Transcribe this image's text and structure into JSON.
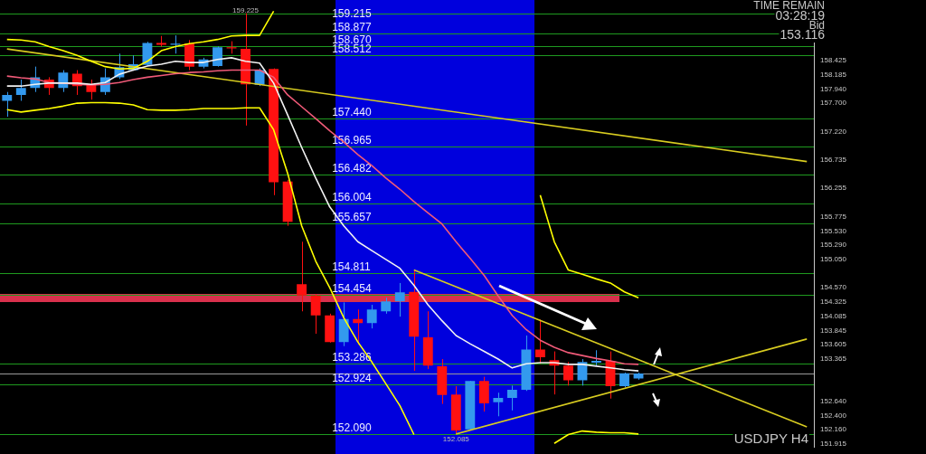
{
  "chart_data": {
    "type": "candlestick",
    "categories": [
      null,
      null,
      null,
      null,
      null,
      null,
      null,
      null,
      null,
      null,
      null,
      null,
      null,
      null,
      null,
      null,
      null,
      null,
      null,
      null,
      null,
      null,
      null,
      null,
      null,
      null,
      null,
      null,
      null,
      null,
      null,
      null,
      null,
      null,
      null,
      null,
      null,
      null,
      null,
      null,
      null,
      null,
      null,
      null,
      null,
      null,
      null,
      null,
      null,
      null,
      null,
      null,
      null,
      null,
      null,
      null,
      null,
      null
    ],
    "ohlc": [
      [
        157.74,
        157.89,
        157.47,
        157.84
      ],
      [
        157.84,
        158.1,
        157.74,
        157.96
      ],
      [
        157.96,
        158.32,
        157.89,
        158.14
      ],
      [
        158.1,
        158.14,
        157.84,
        157.96
      ],
      [
        157.96,
        158.26,
        157.89,
        158.22
      ],
      [
        158.2,
        158.26,
        157.84,
        157.99
      ],
      [
        158.02,
        158.1,
        157.76,
        157.89
      ],
      [
        157.89,
        158.29,
        157.84,
        158.14
      ],
      [
        158.14,
        158.54,
        158.11,
        158.31
      ],
      [
        158.26,
        158.51,
        158.25,
        158.36
      ],
      [
        158.35,
        158.74,
        158.33,
        158.72
      ],
      [
        158.72,
        158.84,
        158.66,
        158.69
      ],
      [
        158.69,
        158.85,
        158.54,
        158.71
      ],
      [
        158.71,
        158.77,
        158.26,
        158.32
      ],
      [
        158.32,
        158.47,
        158.29,
        158.44
      ],
      [
        158.33,
        158.66,
        158.32,
        158.65
      ],
      [
        158.65,
        158.75,
        158.54,
        158.63
      ],
      [
        158.62,
        159.225,
        157.32,
        158.02
      ],
      [
        158.01,
        158.29,
        157.99,
        158.26
      ],
      [
        158.28,
        158.29,
        156.14,
        156.36
      ],
      [
        156.37,
        156.4,
        155.62,
        155.69
      ],
      [
        154.63,
        155.35,
        154.17,
        154.44
      ],
      [
        154.44,
        154.46,
        153.79,
        154.1
      ],
      [
        154.1,
        154.13,
        153.64,
        153.65
      ],
      [
        153.65,
        154.32,
        153.58,
        154.04
      ],
      [
        154.04,
        154.2,
        153.61,
        153.97
      ],
      [
        153.97,
        154.28,
        153.88,
        154.2
      ],
      [
        154.17,
        154.4,
        154.13,
        154.34
      ],
      [
        154.34,
        154.65,
        154.08,
        154.49
      ],
      [
        154.5,
        154.87,
        153.16,
        153.74
      ],
      [
        153.73,
        154.17,
        153.19,
        153.25
      ],
      [
        153.24,
        153.36,
        152.6,
        152.75
      ],
      [
        152.76,
        152.9,
        152.085,
        152.15
      ],
      [
        152.17,
        152.99,
        152.15,
        152.99
      ],
      [
        152.99,
        153.06,
        152.47,
        152.61
      ],
      [
        152.63,
        152.79,
        152.39,
        152.7
      ],
      [
        152.7,
        152.91,
        152.49,
        152.84
      ],
      [
        152.84,
        153.76,
        152.82,
        153.52
      ],
      [
        153.52,
        154.03,
        153.28,
        153.39
      ],
      [
        153.34,
        153.49,
        152.76,
        153.25
      ],
      [
        153.25,
        153.31,
        152.91,
        153.0
      ],
      [
        153.0,
        153.36,
        152.91,
        153.31
      ],
      [
        153.3,
        153.51,
        153.24,
        153.33
      ],
      [
        153.33,
        153.49,
        152.69,
        152.9
      ],
      [
        152.9,
        153.13,
        152.88,
        153.12
      ],
      [
        153.03,
        153.13,
        153.01,
        153.116
      ],
      null,
      null,
      null,
      null,
      null,
      null,
      null,
      null,
      null,
      null,
      null,
      null
    ],
    "colors": [
      "#3399ee",
      "#3399ee",
      "#3399ee",
      "#ff1111",
      "#3399ee",
      "#ff1111",
      "#ff1111",
      "#3399ee",
      "#3399ee",
      "#3399ee",
      "#3399ee",
      "#ff1111",
      "#3399ee",
      "#ff1111",
      "#3399ee",
      "#3399ee",
      "#ff1111",
      "#ff1111",
      "#3399ee",
      "#ff1111",
      "#ff1111",
      "#ff1111",
      "#ff1111",
      "#ff1111",
      "#3399ee",
      "#ff1111",
      "#3399ee",
      "#3399ee",
      "#3399ee",
      "#ff1111",
      "#ff1111",
      "#ff1111",
      "#ff1111",
      "#3399ee",
      "#ff1111",
      "#3399ee",
      "#3399ee",
      "#3399ee",
      "#ff1111",
      "#ff1111",
      "#ff1111",
      "#3399ee",
      "#3399ee",
      "#ff1111",
      "#3399ee",
      "#3399ee",
      null,
      null,
      null,
      null,
      null,
      null,
      null,
      null,
      null,
      null,
      null,
      null
    ],
    "series": [
      {
        "type": "line",
        "color": "#f2f2f2",
        "values": [
          157.99,
          157.99,
          158.02,
          158.04,
          158.04,
          158.04,
          158.02,
          158.05,
          158.19,
          158.26,
          158.33,
          158.36,
          158.41,
          158.39,
          158.39,
          158.44,
          158.47,
          158.41,
          158.38,
          158.04,
          157.5,
          156.95,
          156.43,
          155.94,
          155.62,
          155.35,
          155.2,
          155.05,
          154.9,
          154.61,
          154.28,
          154.01,
          153.76,
          153.62,
          153.49,
          153.36,
          153.21,
          153.28,
          153.3,
          153.3,
          153.27,
          153.27,
          153.24,
          153.21,
          153.18,
          153.16,
          null,
          null,
          null,
          null,
          null,
          null,
          null,
          null,
          null,
          null,
          null,
          null
        ]
      },
      {
        "type": "line",
        "color": "#f05a78",
        "values": [
          158.16,
          158.13,
          158.11,
          158.05,
          158.04,
          158.02,
          158.01,
          158.02,
          158.05,
          158.1,
          158.14,
          158.17,
          158.2,
          158.22,
          158.23,
          158.25,
          158.26,
          158.26,
          158.26,
          158.14,
          157.84,
          157.64,
          157.44,
          157.23,
          157.04,
          156.83,
          156.64,
          156.43,
          156.24,
          156.03,
          155.84,
          155.65,
          155.35,
          155.07,
          154.78,
          154.43,
          154.1,
          153.86,
          153.68,
          153.56,
          153.47,
          153.42,
          153.37,
          153.33,
          153.28,
          153.27,
          null,
          null,
          null,
          null,
          null,
          null,
          null,
          null,
          null,
          null,
          null,
          null
        ]
      },
      {
        "type": "line",
        "color": "#ffff00",
        "values": [
          158.78,
          158.77,
          158.74,
          158.66,
          158.59,
          158.51,
          158.41,
          158.32,
          158.28,
          158.29,
          158.41,
          158.59,
          158.66,
          158.71,
          158.74,
          158.78,
          158.84,
          158.85,
          158.85,
          159.26,
          null,
          null,
          null,
          null,
          null,
          null,
          null,
          null,
          null,
          null,
          null,
          null,
          null,
          null,
          null,
          null,
          null,
          null,
          156.14,
          155.35,
          154.87,
          154.8,
          154.72,
          154.65,
          154.5,
          154.4,
          null,
          null,
          null,
          null,
          null,
          null,
          null,
          null,
          null,
          null,
          null,
          null
        ]
      },
      {
        "type": "line",
        "color": "#ffff00",
        "values": [
          157.59,
          157.55,
          157.58,
          157.61,
          157.65,
          157.7,
          157.71,
          157.71,
          157.7,
          157.67,
          157.59,
          157.58,
          157.58,
          157.59,
          157.61,
          157.61,
          157.61,
          157.62,
          157.62,
          157.25,
          156.51,
          155.62,
          155.02,
          154.57,
          154.06,
          153.65,
          153.31,
          152.94,
          152.57,
          152.08,
          null,
          null,
          null,
          null,
          null,
          null,
          null,
          null,
          null,
          151.93,
          152.08,
          152.14,
          152.12,
          152.11,
          152.11,
          152.09,
          null,
          null,
          null,
          null,
          null,
          null,
          null,
          null,
          null,
          null,
          null,
          null
        ]
      },
      {
        "type": "line",
        "color": "#d8cc20",
        "values": [
          158.62,
          null,
          null,
          null,
          null,
          null,
          null,
          null,
          null,
          null,
          null,
          null,
          null,
          null,
          null,
          null,
          null,
          null,
          null,
          null,
          null,
          null,
          null,
          null,
          null,
          null,
          null,
          null,
          null,
          null,
          null,
          null,
          null,
          null,
          null,
          null,
          null,
          null,
          null,
          null,
          null,
          null,
          null,
          null,
          null,
          null,
          null,
          null,
          null,
          null,
          null,
          null,
          null,
          null,
          null,
          null,
          null,
          156.71
        ]
      },
      {
        "type": "line",
        "color": "#d8cc20",
        "values": [
          null,
          null,
          null,
          null,
          null,
          null,
          null,
          null,
          null,
          null,
          null,
          null,
          null,
          null,
          null,
          null,
          null,
          null,
          null,
          null,
          null,
          null,
          null,
          null,
          null,
          null,
          null,
          null,
          null,
          154.87,
          null,
          null,
          null,
          null,
          null,
          null,
          null,
          null,
          null,
          null,
          null,
          null,
          null,
          null,
          null,
          null,
          null,
          null,
          null,
          null,
          null,
          null,
          null,
          null,
          null,
          null,
          null,
          152.21
        ]
      },
      {
        "type": "line",
        "color": "#d8cc20",
        "values": [
          null,
          null,
          null,
          null,
          null,
          null,
          null,
          null,
          null,
          null,
          null,
          null,
          null,
          null,
          null,
          null,
          null,
          null,
          null,
          null,
          null,
          null,
          null,
          null,
          null,
          null,
          null,
          null,
          null,
          null,
          null,
          null,
          152.09,
          null,
          null,
          null,
          null,
          null,
          null,
          null,
          null,
          null,
          null,
          null,
          null,
          null,
          null,
          null,
          null,
          null,
          null,
          null,
          null,
          null,
          null,
          null,
          null,
          153.7
        ]
      }
    ],
    "ylim": [
      151.87,
      159.33
    ],
    "yticks": [
      151.915,
      {
        "value": 152.16,
        "label": "152.160"
      },
      {
        "value": 152.4,
        "label": "152.400"
      },
      {
        "value": 152.64,
        "label": "152.640"
      },
      153.365,
      153.605,
      153.845,
      154.085,
      154.325,
      {
        "value": 154.57,
        "label": "154.570"
      },
      {
        "value": 155.05,
        "label": "155.050"
      },
      {
        "value": 155.29,
        "label": "155.290"
      },
      {
        "value": 155.53,
        "label": "155.530"
      },
      155.775,
      156.255,
      156.735,
      {
        "value": 157.22,
        "label": "157.220"
      },
      {
        "value": 157.7,
        "label": "157.700"
      },
      {
        "value": 157.94,
        "label": "157.940"
      },
      158.185,
      158.425
    ],
    "tick_labels": "y",
    "marker": "none",
    "ref_lines": [
      {
        "axis": "y",
        "value": 159.215,
        "label": "159.215",
        "color": "#1f9a1f"
      },
      {
        "axis": "y",
        "value": 158.877,
        "label": "158.877",
        "color": "#1f9a1f"
      },
      {
        "axis": "y",
        "value": 158.67,
        "label": "158.670",
        "color": "#1f9a1f"
      },
      {
        "axis": "y",
        "value": 158.512,
        "label": "158.512",
        "color": "#1f9a1f"
      },
      {
        "axis": "y",
        "value": 157.44,
        "label": "157.440",
        "color": "#1f9a1f"
      },
      {
        "axis": "y",
        "value": 156.965,
        "label": "156.965",
        "color": "#1f9a1f"
      },
      {
        "axis": "y",
        "value": 156.482,
        "label": "156.482",
        "color": "#1f9a1f"
      },
      {
        "axis": "y",
        "value": 156.004,
        "label": "156.004",
        "color": "#1f9a1f"
      },
      {
        "axis": "y",
        "value": 155.657,
        "label": "155.657",
        "color": "#1f9a1f"
      },
      {
        "axis": "y",
        "value": 154.811,
        "label": "154.811",
        "color": "#1f9a1f"
      },
      {
        "axis": "y",
        "value": 154.454,
        "label": "154.454",
        "color": "#1f9a1f"
      },
      {
        "axis": "y",
        "value": 153.286,
        "label": "153.286",
        "color": "#1f9a1f"
      },
      {
        "axis": "y",
        "value": 153.116,
        "color": "#9a9a9a"
      },
      {
        "axis": "y",
        "value": 152.924,
        "label": "152.924",
        "color": "#1f9a1f"
      },
      {
        "axis": "y",
        "value": 152.09,
        "label": "152.090",
        "color": "#1f9a1f"
      }
    ],
    "annotations": [
      "TIME REMAIN",
      "03:28:19",
      "Bid",
      "153.116",
      {
        "text": "159.225",
        "y": 159.225
      },
      {
        "text": "152.085",
        "y": 152.085
      },
      "USDJPY H4"
    ]
  }
}
